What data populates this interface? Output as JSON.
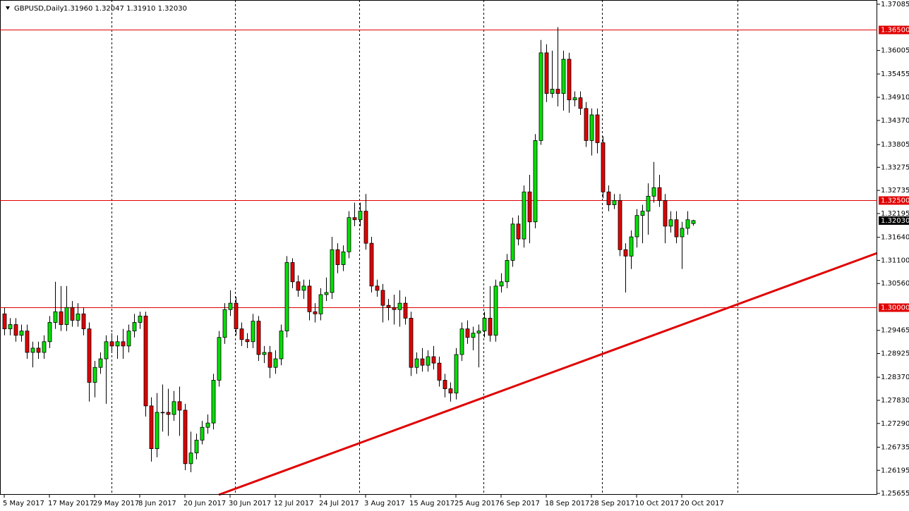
{
  "chart_data": {
    "type": "candlestick",
    "header": {
      "symbol": "GBPUSD,Daily",
      "quote": "1.31960 1.32047 1.31910 1.32030"
    },
    "bull_color": "#00e000",
    "bear_color": "#e00000",
    "ylim": [
      1.25623,
      1.37184
    ],
    "yticks": [
      1.37085,
      1.36005,
      1.35455,
      {
        "value": 1.3491,
        "label": "1.34910"
      },
      {
        "value": 1.3437,
        "label": "1.34370"
      },
      1.33805,
      1.33275,
      1.32735,
      1.32195,
      {
        "value": 1.3164,
        "label": "1.31640"
      },
      {
        "value": 1.311,
        "label": "1.31100"
      },
      {
        "value": 1.3056,
        "label": "1.30560"
      },
      1.29465,
      1.28925,
      {
        "value": 1.2837,
        "label": "1.28370"
      },
      {
        "value": 1.2783,
        "label": "1.27830"
      },
      {
        "value": 1.2729,
        "label": "1.27290"
      },
      1.26735,
      1.26195,
      1.25655
    ],
    "levels": [
      {
        "value": 1.365,
        "label": "1.36500"
      },
      {
        "value": 1.325,
        "label": "1.32500"
      },
      {
        "value": 1.3,
        "label": "1.30000"
      }
    ],
    "current_price": {
      "value": 1.3203,
      "label": "1.32030"
    },
    "categories": [
      "5 May 2017",
      null,
      null,
      null,
      null,
      null,
      null,
      null,
      "17 May 2017",
      null,
      null,
      null,
      null,
      null,
      null,
      null,
      "29 May 2017",
      null,
      null,
      null,
      null,
      null,
      null,
      null,
      "8 Jun 2017",
      null,
      null,
      null,
      null,
      null,
      null,
      null,
      "20 Jun 2017",
      null,
      null,
      null,
      null,
      null,
      null,
      null,
      "30 Jun 2017",
      null,
      null,
      null,
      null,
      null,
      null,
      null,
      "12 Jul 2017",
      null,
      null,
      null,
      null,
      null,
      null,
      null,
      "24 Jul 2017",
      null,
      null,
      null,
      null,
      null,
      null,
      null,
      "3 Aug 2017",
      null,
      null,
      null,
      null,
      null,
      null,
      null,
      "15 Aug 2017",
      null,
      null,
      null,
      null,
      null,
      null,
      null,
      "25 Aug 2017",
      null,
      null,
      null,
      null,
      null,
      null,
      null,
      "6 Sep 2017",
      null,
      null,
      null,
      null,
      null,
      null,
      null,
      "18 Sep 2017",
      null,
      null,
      null,
      null,
      null,
      null,
      null,
      "28 Sep 2017",
      null,
      null,
      null,
      null,
      null,
      null,
      null,
      "10 Oct 2017",
      null,
      null,
      null,
      null,
      null,
      null,
      null,
      "20 Oct 2017",
      null,
      null
    ],
    "open": [
      1.2985,
      1.295,
      1.296,
      1.2935,
      1.2945,
      1.2895,
      1.2905,
      1.2895,
      1.292,
      1.2965,
      1.299,
      1.296,
      1.3,
      1.297,
      1.2985,
      1.295,
      1.2825,
      1.286,
      1.288,
      1.292,
      1.291,
      1.292,
      1.291,
      1.2945,
      1.2965,
      1.298,
      1.277,
      1.267,
      1.2755,
      1.2755,
      1.275,
      1.278,
      1.276,
      1.2635,
      1.266,
      1.269,
      1.272,
      1.273,
      1.283,
      1.293,
      1.2995,
      1.301,
      1.295,
      1.2925,
      1.292,
      1.2968,
      1.289,
      1.2895,
      1.286,
      1.288,
      1.2945,
      1.3105,
      1.306,
      1.304,
      1.305,
      1.299,
      1.2985,
      1.303,
      1.3035,
      1.3135,
      1.31,
      1.313,
      1.321,
      1.3205,
      1.3225,
      1.315,
      1.305,
      1.304,
      1.3005,
      1.3,
      1.2995,
      1.301,
      1.2975,
      1.286,
      1.288,
      1.2865,
      1.2885,
      1.287,
      1.283,
      1.281,
      1.28,
      1.289,
      1.295,
      1.293,
      1.294,
      1.2945,
      1.2975,
      1.2935,
      1.305,
      1.306,
      1.311,
      1.3195,
      1.316,
      1.327,
      1.32,
      1.339,
      1.3595,
      1.35,
      1.351,
      1.35,
      1.358,
      1.3485,
      1.349,
      1.3465,
      1.339,
      1.345,
      1.3385,
      1.327,
      1.324,
      1.325,
      1.3135,
      1.312,
      1.3165,
      1.3215,
      1.3225,
      1.326,
      1.328,
      1.325,
      1.319,
      1.3205,
      1.3165,
      1.3185,
      1.3196
    ],
    "high": [
      1.3,
      1.2975,
      1.2975,
      1.296,
      1.296,
      1.292,
      1.292,
      1.2935,
      1.298,
      1.306,
      1.305,
      1.305,
      1.3015,
      1.301,
      1.3,
      1.2965,
      1.2875,
      1.2895,
      1.2935,
      1.294,
      1.2935,
      1.295,
      1.296,
      1.2985,
      1.299,
      1.299,
      1.279,
      1.28,
      1.282,
      1.281,
      1.2805,
      1.2815,
      1.2775,
      1.271,
      1.2705,
      1.2735,
      1.275,
      1.2845,
      1.2945,
      1.301,
      1.304,
      1.3025,
      1.2965,
      1.294,
      1.2985,
      1.298,
      1.291,
      1.291,
      1.29,
      1.296,
      1.312,
      1.3115,
      1.3075,
      1.3065,
      1.3065,
      1.301,
      1.3045,
      1.307,
      1.3165,
      1.315,
      1.3145,
      1.3225,
      1.3245,
      1.3245,
      1.3265,
      1.3165,
      1.3065,
      1.3055,
      1.302,
      1.303,
      1.304,
      1.3025,
      1.299,
      1.2895,
      1.2905,
      1.29,
      1.291,
      1.2885,
      1.2845,
      1.2825,
      1.2905,
      1.2965,
      1.297,
      1.2955,
      1.296,
      1.299,
      1.305,
      1.3065,
      1.308,
      1.3125,
      1.321,
      1.3215,
      1.3285,
      1.331,
      1.3405,
      1.3625,
      1.3615,
      1.36,
      1.3655,
      1.36,
      1.3595,
      1.3505,
      1.3505,
      1.348,
      1.3465,
      1.3465,
      1.34,
      1.3285,
      1.3265,
      1.3265,
      1.315,
      1.318,
      1.323,
      1.324,
      1.329,
      1.334,
      1.331,
      1.3265,
      1.3225,
      1.3225,
      1.32,
      1.3225,
      1.32047
    ],
    "low": [
      1.2935,
      1.2935,
      1.292,
      1.292,
      1.288,
      1.286,
      1.288,
      1.288,
      1.2905,
      1.295,
      1.2945,
      1.2945,
      1.2955,
      1.2955,
      1.2935,
      1.278,
      1.279,
      1.2845,
      1.2775,
      1.2895,
      1.288,
      1.288,
      1.2895,
      1.293,
      1.295,
      1.2745,
      1.264,
      1.265,
      1.271,
      1.27,
      1.2735,
      1.27,
      1.262,
      1.2615,
      1.2645,
      1.268,
      1.2705,
      1.2715,
      1.2815,
      1.2915,
      1.298,
      1.2935,
      1.291,
      1.2905,
      1.2905,
      1.2875,
      1.287,
      1.2835,
      1.2845,
      1.2865,
      1.293,
      1.3045,
      1.3025,
      1.302,
      1.297,
      1.2965,
      1.297,
      1.3015,
      1.302,
      1.308,
      1.3085,
      1.3115,
      1.319,
      1.319,
      1.3135,
      1.3035,
      1.3025,
      1.2965,
      1.297,
      1.296,
      1.2955,
      1.296,
      1.284,
      1.2845,
      1.285,
      1.285,
      1.2855,
      1.2815,
      1.279,
      1.278,
      1.2785,
      1.2875,
      1.2915,
      1.29,
      1.286,
      1.293,
      1.292,
      1.292,
      1.3035,
      1.3045,
      1.3095,
      1.3145,
      1.314,
      1.315,
      1.3185,
      1.338,
      1.348,
      1.349,
      1.347,
      1.346,
      1.3455,
      1.347,
      1.345,
      1.3375,
      1.3355,
      1.336,
      1.3255,
      1.3225,
      1.323,
      1.312,
      1.3035,
      1.309,
      1.314,
      1.315,
      1.317,
      1.3245,
      1.3235,
      1.315,
      1.3175,
      1.315,
      1.309,
      1.317,
      1.3191
    ],
    "close": [
      1.295,
      1.296,
      1.2935,
      1.2945,
      1.2895,
      1.2905,
      1.2895,
      1.292,
      1.2965,
      1.299,
      1.296,
      1.3,
      1.297,
      1.2985,
      1.295,
      1.2825,
      1.286,
      1.288,
      1.292,
      1.291,
      1.292,
      1.291,
      1.2945,
      1.2965,
      1.298,
      1.277,
      1.267,
      1.2755,
      1.2755,
      1.275,
      1.278,
      1.276,
      1.2635,
      1.266,
      1.269,
      1.272,
      1.273,
      1.283,
      1.293,
      1.2995,
      1.301,
      1.295,
      1.2925,
      1.292,
      1.2968,
      1.289,
      1.2895,
      1.286,
      1.288,
      1.2945,
      1.3105,
      1.306,
      1.304,
      1.305,
      1.299,
      1.2985,
      1.303,
      1.3035,
      1.3135,
      1.31,
      1.313,
      1.321,
      1.3205,
      1.3225,
      1.315,
      1.305,
      1.304,
      1.3005,
      1.3,
      1.2995,
      1.301,
      1.2975,
      1.286,
      1.288,
      1.2865,
      1.2885,
      1.287,
      1.283,
      1.281,
      1.28,
      1.289,
      1.295,
      1.293,
      1.294,
      1.2945,
      1.2975,
      1.2935,
      1.305,
      1.306,
      1.311,
      1.3195,
      1.316,
      1.327,
      1.32,
      1.339,
      1.3595,
      1.35,
      1.351,
      1.35,
      1.358,
      1.3485,
      1.349,
      1.3465,
      1.339,
      1.345,
      1.3385,
      1.327,
      1.324,
      1.325,
      1.3135,
      1.312,
      1.3165,
      1.3215,
      1.3225,
      1.326,
      1.328,
      1.325,
      1.319,
      1.3205,
      1.3165,
      1.3185,
      1.3205,
      1.3203
    ]
  }
}
